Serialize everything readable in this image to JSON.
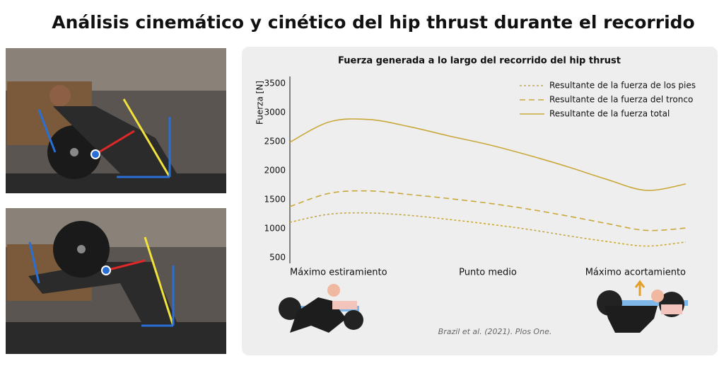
{
  "header": {
    "title": "Análisis cinemático y cinético del hip thrust durante el recorrido"
  },
  "chart_data": {
    "type": "line",
    "title": "Fuerza generada a lo largo del recorrido del hip thrust",
    "y_label": "Fuerza [N]",
    "x": [
      0,
      10,
      20,
      30,
      40,
      50,
      60,
      70,
      80,
      90,
      100
    ],
    "xlim": [
      0,
      100
    ],
    "xticks": [
      {
        "value": 0,
        "label": "Máximo estiramiento"
      },
      {
        "value": 50,
        "label": "Punto medio"
      },
      {
        "value": 100,
        "label": "Máximo acortamiento"
      }
    ],
    "ylim": [
      400,
      3600
    ],
    "yticks": [
      500,
      1000,
      1500,
      2000,
      2500,
      3000,
      3500
    ],
    "grid": false,
    "legend": "upper right",
    "series": [
      {
        "name": "Resultante de la fuerza de los pies",
        "color": "#c9a83a",
        "dash": "dotted",
        "values": [
          1110,
          1250,
          1270,
          1230,
          1160,
          1080,
          990,
          880,
          780,
          700,
          770
        ]
      },
      {
        "name": "Resultante de la fuerza del tronco",
        "color": "#c9a83a",
        "dash": "dashed",
        "values": [
          1380,
          1610,
          1650,
          1590,
          1520,
          1440,
          1340,
          1220,
          1090,
          970,
          1010
        ]
      },
      {
        "name": "Resultante de la fuerza total",
        "color": "#c9a83a",
        "dash": "solid",
        "values": [
          2490,
          2840,
          2880,
          2760,
          2600,
          2450,
          2270,
          2070,
          1850,
          1660,
          1770
        ]
      }
    ],
    "source": "Brazil et al. (2021). Plos One."
  }
}
